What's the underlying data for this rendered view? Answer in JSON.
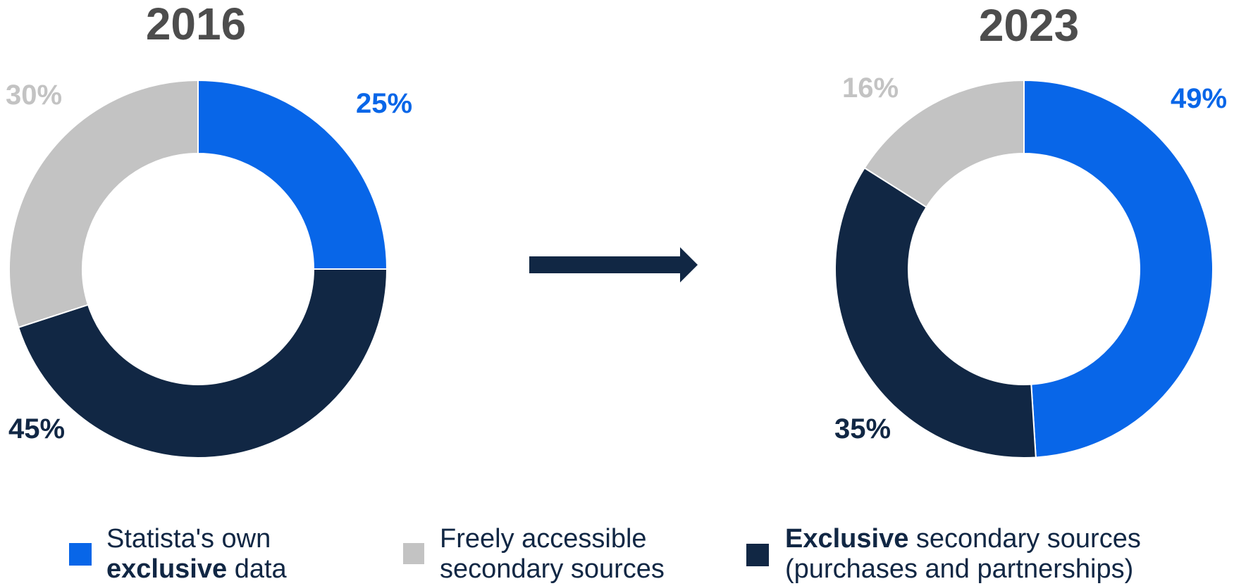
{
  "colors": {
    "blue": "#0866e8",
    "navy": "#112744",
    "gray": "#c3c3c3",
    "title": "#4d4d4d",
    "gray_label": "#c3c3c3"
  },
  "legend": [
    {
      "key": "own",
      "color_key": "blue",
      "line1": "Statista's own",
      "line2_bold": "exclusive",
      "line2_rest": " data"
    },
    {
      "key": "free",
      "color_key": "gray",
      "line1": "Freely accessible",
      "line2_bold": "",
      "line2_rest": "secondary sources"
    },
    {
      "key": "excl",
      "color_key": "navy",
      "line1_bold": "Exclusive",
      "line1": " secondary sources",
      "line2_bold": "",
      "line2_rest": "(purchases and partnerships)"
    }
  ],
  "arrow": {
    "icon": "right-arrow-icon"
  },
  "chart_data": [
    {
      "type": "pie",
      "donut": true,
      "title": "2016",
      "series": [
        {
          "name": "Statista's own exclusive data",
          "value": 25,
          "label": "25%",
          "color_key": "blue"
        },
        {
          "name": "Exclusive secondary sources (purchases and partnerships)",
          "value": 45,
          "label": "45%",
          "color_key": "navy"
        },
        {
          "name": "Freely accessible secondary sources",
          "value": 30,
          "label": "30%",
          "color_key": "gray"
        }
      ]
    },
    {
      "type": "pie",
      "donut": true,
      "title": "2023",
      "series": [
        {
          "name": "Statista's own exclusive data",
          "value": 49,
          "label": "49%",
          "color_key": "blue"
        },
        {
          "name": "Exclusive secondary sources (purchases and partnerships)",
          "value": 35,
          "label": "35%",
          "color_key": "navy"
        },
        {
          "name": "Freely accessible secondary sources",
          "value": 16,
          "label": "16%",
          "color_key": "gray"
        }
      ]
    }
  ]
}
